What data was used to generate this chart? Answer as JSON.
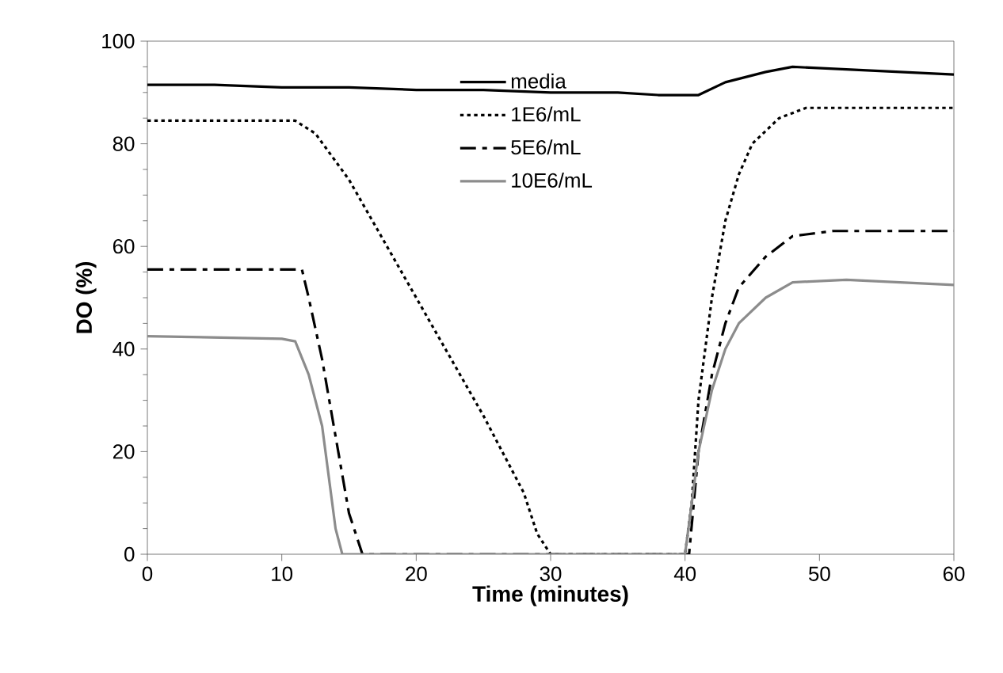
{
  "chart_data": {
    "type": "line",
    "xlabel": "Time (minutes)",
    "ylabel": "DO (%)",
    "xlim": [
      0,
      60
    ],
    "xticks": [
      0,
      10,
      20,
      30,
      40,
      50,
      60
    ],
    "ylim": [
      0,
      100
    ],
    "yticks": [
      0,
      20,
      40,
      60,
      80,
      100
    ],
    "grid": false,
    "legend": "top",
    "marker": "none",
    "series": [
      {
        "name": "media",
        "color": "#000000",
        "line_style": "solid",
        "x": [
          0,
          5,
          10,
          15,
          20,
          25,
          30,
          35,
          38,
          41,
          43,
          46,
          48,
          52,
          56,
          60
        ],
        "values": [
          91.5,
          91.5,
          91,
          91,
          90.5,
          90.5,
          90,
          90,
          89.5,
          89.5,
          92,
          94,
          95,
          94.5,
          94,
          93.5
        ]
      },
      {
        "name": "1E6/mL",
        "color": "#000000",
        "line_style": "dotted",
        "x": [
          0,
          11,
          12.5,
          15,
          20,
          25,
          28,
          29,
          30,
          40,
          40.5,
          41,
          42,
          43,
          44,
          45,
          47,
          49,
          60
        ],
        "values": [
          84.5,
          84.5,
          82,
          73,
          50,
          27,
          12,
          4,
          0,
          0,
          10,
          30,
          50,
          65,
          74,
          80,
          85,
          87,
          87
        ]
      },
      {
        "name": "5E6/mL",
        "color": "#000000",
        "line_style": "dashed",
        "x": [
          0,
          11.5,
          12,
          13,
          14,
          15,
          16,
          40,
          40.3,
          41,
          42,
          43,
          44,
          46,
          48,
          51,
          60
        ],
        "values": [
          55.5,
          55.5,
          50,
          38,
          23,
          8,
          0,
          0,
          0,
          20,
          35,
          45,
          52,
          58,
          62,
          63,
          63
        ]
      },
      {
        "name": "10E6/mL",
        "color": "#8c8c8c",
        "line_style": "solid",
        "x": [
          0,
          10,
          11,
          12,
          13,
          13.5,
          14,
          14.5,
          40,
          41,
          42,
          43,
          44,
          46,
          48,
          52,
          56,
          60
        ],
        "values": [
          42.5,
          42,
          41.5,
          35,
          25,
          15,
          5,
          0,
          0,
          20,
          32,
          40,
          45,
          50,
          53,
          53.5,
          53,
          52.5
        ]
      }
    ]
  }
}
